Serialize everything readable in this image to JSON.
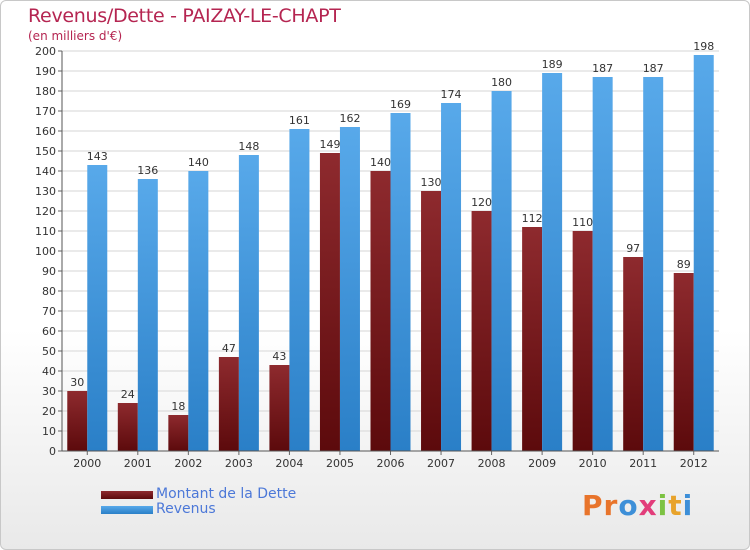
{
  "chart_data": {
    "type": "bar",
    "title": "Revenus/Dette - PAIZAY-LE-CHAPT",
    "subtitle": "(en milliers d'€)",
    "categories": [
      "2000",
      "2001",
      "2002",
      "2003",
      "2004",
      "2005",
      "2006",
      "2007",
      "2008",
      "2009",
      "2010",
      "2011",
      "2012"
    ],
    "series": [
      {
        "name": "Montant de la Dette",
        "color": "#7a1b1e",
        "values": [
          30,
          24,
          18,
          47,
          43,
          149,
          140,
          130,
          120,
          112,
          110,
          97,
          89
        ]
      },
      {
        "name": "Revenus",
        "color": "#3f95dd",
        "values": [
          143,
          136,
          140,
          148,
          161,
          162,
          169,
          174,
          180,
          189,
          187,
          187,
          198
        ]
      }
    ],
    "ylim": [
      0,
      200
    ],
    "ytick_step": 10,
    "grid": true,
    "legend_position": "bottom-left"
  },
  "logo": {
    "text": "Proxiti",
    "letters": [
      {
        "ch": "P",
        "color": "#e8742b"
      },
      {
        "ch": "r",
        "color": "#e8742b"
      },
      {
        "ch": "o",
        "color": "#3d8fd8"
      },
      {
        "ch": "x",
        "color": "#e23d7a"
      },
      {
        "ch": "i",
        "color": "#7cc242"
      },
      {
        "ch": "t",
        "color": "#e8a32b"
      },
      {
        "ch": "i",
        "color": "#3d8fd8"
      }
    ]
  }
}
